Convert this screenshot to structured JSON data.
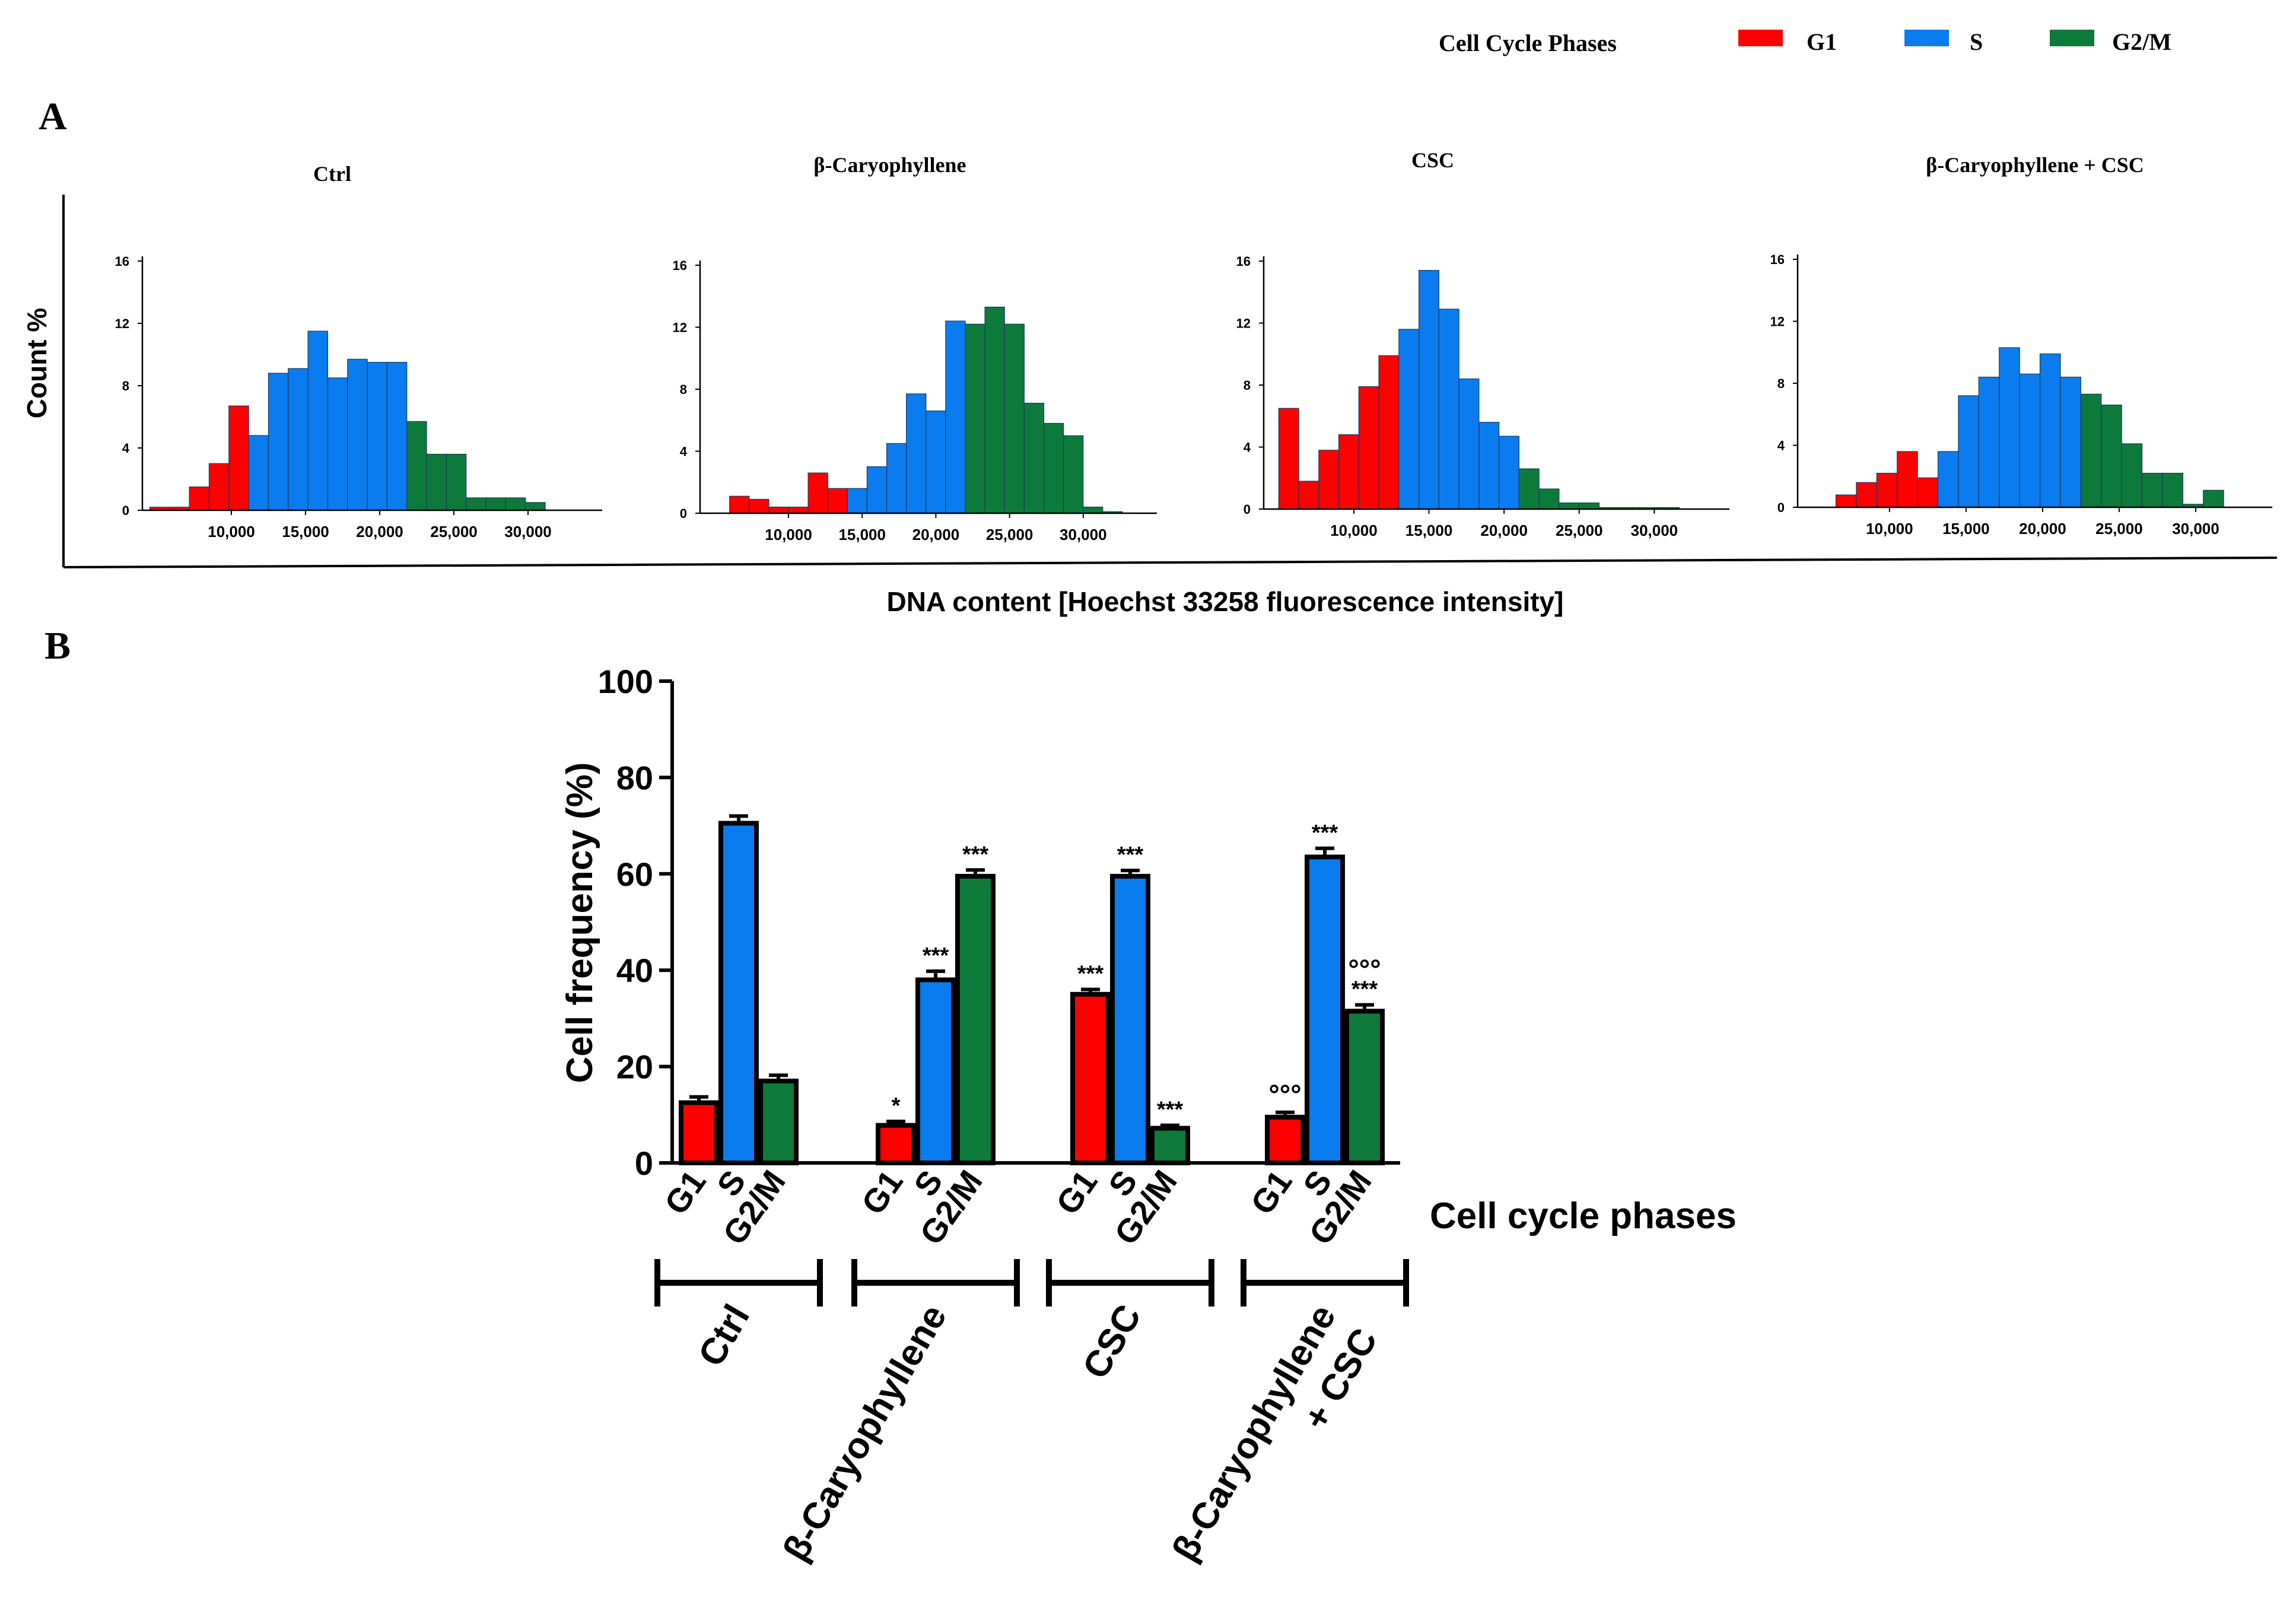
{
  "legend": {
    "title": "Cell Cycle Phases",
    "items": [
      {
        "label": "G1",
        "color": "#ff0000"
      },
      {
        "label": "S",
        "color": "#0a7cf0"
      },
      {
        "label": "G2/M",
        "color": "#0d7a3c"
      }
    ]
  },
  "panel_a": {
    "letter": "A",
    "ylabel": "Count %",
    "xlabel": "DNA content [Hoechst 33258 fluorescence intensity]"
  },
  "panel_b": {
    "letter": "B"
  },
  "chart_data": [
    {
      "type": "bar",
      "subtype": "histogram",
      "title": "Ctrl",
      "ylim": [
        0,
        16
      ],
      "yticks": [
        "0",
        "4",
        "8",
        "12",
        "16"
      ],
      "xticks": [
        "10,000",
        "15,000",
        "20,000",
        "25,000",
        "30,000"
      ],
      "xtick_values": [
        10000,
        15000,
        20000,
        25000,
        30000
      ],
      "bin_start": 4500,
      "bin_width": 1333,
      "values": [
        0.2,
        0.2,
        1.5,
        3.0,
        6.7,
        4.8,
        8.8,
        9.1,
        11.5,
        8.5,
        9.7,
        9.5,
        9.5,
        5.7,
        3.6,
        3.6,
        0.8,
        0.8,
        0.8,
        0.5
      ],
      "phases": [
        "G1",
        "G1",
        "G1",
        "G1",
        "G1",
        "S",
        "S",
        "S",
        "S",
        "S",
        "S",
        "S",
        "S",
        "G2/M",
        "G2/M",
        "G2/M",
        "G2/M",
        "G2/M",
        "G2/M",
        "G2/M"
      ]
    },
    {
      "type": "bar",
      "subtype": "histogram",
      "title": "β-Caryophyllene",
      "ylim": [
        0,
        16
      ],
      "yticks": [
        "0",
        "4",
        "8",
        "12",
        "16"
      ],
      "xticks": [
        "10,000",
        "15,000",
        "20,000",
        "25,000",
        "30,000"
      ],
      "xtick_values": [
        10000,
        15000,
        20000,
        25000,
        30000
      ],
      "bin_start": 6000,
      "bin_width": 1333,
      "values": [
        1.1,
        0.9,
        0.4,
        0.4,
        2.6,
        1.6,
        1.6,
        3.0,
        4.5,
        7.7,
        6.6,
        12.4,
        12.2,
        13.3,
        12.2,
        7.1,
        5.8,
        5.0,
        0.4,
        0.1
      ],
      "phases": [
        "G1",
        "G1",
        "G1",
        "G1",
        "G1",
        "G1",
        "S",
        "S",
        "S",
        "S",
        "S",
        "S",
        "G2/M",
        "G2/M",
        "G2/M",
        "G2/M",
        "G2/M",
        "G2/M",
        "G2/M",
        "G2/M"
      ]
    },
    {
      "type": "bar",
      "subtype": "histogram",
      "title": "CSC",
      "ylim": [
        0,
        16
      ],
      "yticks": [
        "0",
        "4",
        "8",
        "12",
        "16"
      ],
      "xticks": [
        "10,000",
        "15,000",
        "20,000",
        "25,000",
        "30,000"
      ],
      "xtick_values": [
        10000,
        15000,
        20000,
        25000,
        30000
      ],
      "bin_start": 5000,
      "bin_width": 1333,
      "values": [
        6.5,
        1.8,
        3.8,
        4.8,
        7.9,
        9.9,
        11.6,
        15.4,
        12.9,
        8.4,
        5.6,
        4.7,
        2.6,
        1.3,
        0.4,
        0.4,
        0.1,
        0.1,
        0.1,
        0.1
      ],
      "phases": [
        "G1",
        "G1",
        "G1",
        "G1",
        "G1",
        "G1",
        "S",
        "S",
        "S",
        "S",
        "S",
        "S",
        "G2/M",
        "G2/M",
        "G2/M",
        "G2/M",
        "G2/M",
        "G2/M",
        "G2/M",
        "G2/M"
      ]
    },
    {
      "type": "bar",
      "subtype": "histogram",
      "title": "β-Caryophyllene + CSC",
      "ylim": [
        0,
        16
      ],
      "yticks": [
        "0",
        "4",
        "8",
        "12",
        "16"
      ],
      "xticks": [
        "10,000",
        "15,000",
        "20,000",
        "25,000",
        "30,000"
      ],
      "xtick_values": [
        10000,
        15000,
        20000,
        25000,
        30000
      ],
      "bin_start": 6500,
      "bin_width": 1333,
      "values": [
        0.8,
        1.6,
        2.2,
        3.6,
        1.9,
        3.6,
        7.2,
        8.4,
        10.3,
        8.6,
        9.9,
        8.4,
        7.3,
        6.6,
        4.1,
        2.2,
        2.2,
        0.2,
        1.1
      ],
      "phases": [
        "G1",
        "G1",
        "G1",
        "G1",
        "G1",
        "S",
        "S",
        "S",
        "S",
        "S",
        "S",
        "S",
        "G2/M",
        "G2/M",
        "G2/M",
        "G2/M",
        "G2/M",
        "G2/M",
        "G2/M"
      ]
    },
    {
      "type": "bar",
      "title": "",
      "ylabel": "Cell frequency (%)",
      "xlabel": "Cell cycle phases",
      "ylim": [
        0,
        100
      ],
      "yticks": [
        "0",
        "20",
        "40",
        "60",
        "80",
        "100"
      ],
      "phases": [
        "G1",
        "S",
        "G2/M"
      ],
      "groups": [
        {
          "name": "Ctrl",
          "lines": [
            "Ctrl"
          ],
          "values": [
            12.5,
            70.5,
            17.0
          ],
          "errors": [
            1.2,
            1.5,
            1.2
          ],
          "marks": [
            "",
            "",
            ""
          ]
        },
        {
          "name": "β-Caryophyllene",
          "lines": [
            "β-Caryophyllene"
          ],
          "values": [
            7.8,
            38.0,
            59.5
          ],
          "errors": [
            0.8,
            1.8,
            1.3
          ],
          "marks": [
            "*",
            "***",
            "***"
          ]
        },
        {
          "name": "CSC",
          "lines": [
            "CSC"
          ],
          "values": [
            35.0,
            59.5,
            7.2
          ],
          "errors": [
            1.0,
            1.2,
            0.6
          ],
          "marks": [
            "***",
            "***",
            "***"
          ]
        },
        {
          "name": "β-Caryophyllene + CSC",
          "lines": [
            "β-Caryophyllene",
            "+ CSC"
          ],
          "values": [
            9.5,
            63.5,
            31.5
          ],
          "errors": [
            1.0,
            1.8,
            1.3
          ],
          "marks": [
            "°°°",
            "***",
            "***"
          ],
          "marks2": [
            "",
            "",
            "°°°"
          ]
        }
      ]
    }
  ]
}
